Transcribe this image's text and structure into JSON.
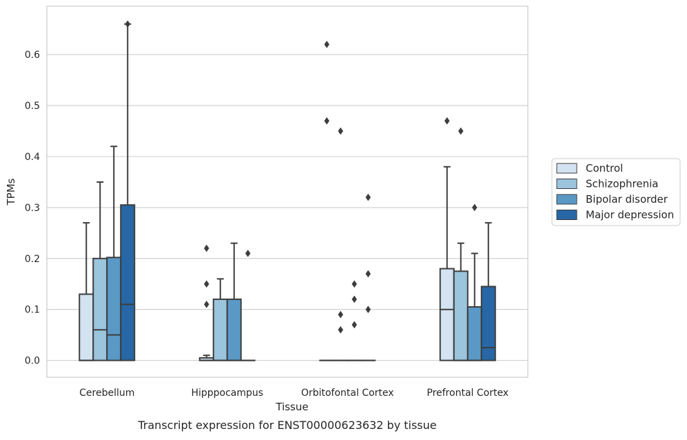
{
  "chart_data": {
    "type": "boxplot",
    "xlabel": "Tissue",
    "ylabel": "TPMs",
    "caption": "Transcript expression for ENST00000623632 by tissue",
    "ylim": [
      -0.033,
      0.695
    ],
    "yticks": [
      0.0,
      0.1,
      0.2,
      0.3,
      0.4,
      0.5,
      0.6
    ],
    "ytick_labels": [
      "0.0",
      "0.1",
      "0.2",
      "0.3",
      "0.4",
      "0.5",
      "0.6"
    ],
    "grid": "horizontal",
    "legend_position": "right, outside plot",
    "categories": [
      "Cerebellum",
      "Hipppocampus",
      "Orbitofontal Cortex",
      "Prefrontal Cortex"
    ],
    "series": [
      {
        "name": "Control",
        "color": "#d3e3f1",
        "boxes": [
          {
            "q1": 0.0,
            "median": 0.0,
            "q3": 0.13,
            "whisker_low": 0.0,
            "whisker_high": 0.27,
            "outliers": []
          },
          {
            "q1": 0.0,
            "median": 0.0,
            "q3": 0.005,
            "whisker_low": 0.0,
            "whisker_high": 0.01,
            "outliers": [
              0.11,
              0.15,
              0.22
            ]
          },
          {
            "q1": 0.0,
            "median": 0.0,
            "q3": 0.0,
            "whisker_low": 0.0,
            "whisker_high": 0.0,
            "outliers": [
              0.47,
              0.62
            ]
          },
          {
            "q1": 0.0,
            "median": 0.1,
            "q3": 0.18,
            "whisker_low": 0.0,
            "whisker_high": 0.38,
            "outliers": [
              0.47
            ]
          }
        ]
      },
      {
        "name": "Schizophrenia",
        "color": "#9bc4dd",
        "boxes": [
          {
            "q1": 0.0,
            "median": 0.06,
            "q3": 0.2,
            "whisker_low": 0.0,
            "whisker_high": 0.35,
            "outliers": []
          },
          {
            "q1": 0.0,
            "median": 0.0,
            "q3": 0.12,
            "whisker_low": 0.0,
            "whisker_high": 0.16,
            "outliers": []
          },
          {
            "q1": 0.0,
            "median": 0.0,
            "q3": 0.0,
            "whisker_low": 0.0,
            "whisker_high": 0.0,
            "outliers": [
              0.06,
              0.09,
              0.45
            ]
          },
          {
            "q1": 0.0,
            "median": 0.0,
            "q3": 0.175,
            "whisker_low": 0.0,
            "whisker_high": 0.23,
            "outliers": [
              0.45
            ]
          }
        ]
      },
      {
        "name": "Bipolar disorder",
        "color": "#5a99c6",
        "boxes": [
          {
            "q1": 0.0,
            "median": 0.05,
            "q3": 0.202,
            "whisker_low": 0.0,
            "whisker_high": 0.42,
            "outliers": []
          },
          {
            "q1": 0.0,
            "median": 0.0,
            "q3": 0.12,
            "whisker_low": 0.0,
            "whisker_high": 0.23,
            "outliers": []
          },
          {
            "q1": 0.0,
            "median": 0.0,
            "q3": 0.0,
            "whisker_low": 0.0,
            "whisker_high": 0.0,
            "outliers": [
              0.07,
              0.12,
              0.15
            ]
          },
          {
            "q1": 0.0,
            "median": 0.0,
            "q3": 0.105,
            "whisker_low": 0.0,
            "whisker_high": 0.21,
            "outliers": [
              0.3
            ]
          }
        ]
      },
      {
        "name": "Major depression",
        "color": "#2767a6",
        "boxes": [
          {
            "q1": 0.0,
            "median": 0.11,
            "q3": 0.305,
            "whisker_low": 0.0,
            "whisker_high": 0.66,
            "outliers": [
              0.66
            ]
          },
          {
            "q1": 0.0,
            "median": 0.0,
            "q3": 0.0,
            "whisker_low": 0.0,
            "whisker_high": 0.0,
            "outliers": [
              0.21
            ]
          },
          {
            "q1": 0.0,
            "median": 0.0,
            "q3": 0.0,
            "whisker_low": 0.0,
            "whisker_high": 0.0,
            "outliers": [
              0.1,
              0.17,
              0.32
            ]
          },
          {
            "q1": 0.0,
            "median": 0.025,
            "q3": 0.145,
            "whisker_low": 0.0,
            "whisker_high": 0.27,
            "outliers": []
          }
        ]
      }
    ]
  }
}
